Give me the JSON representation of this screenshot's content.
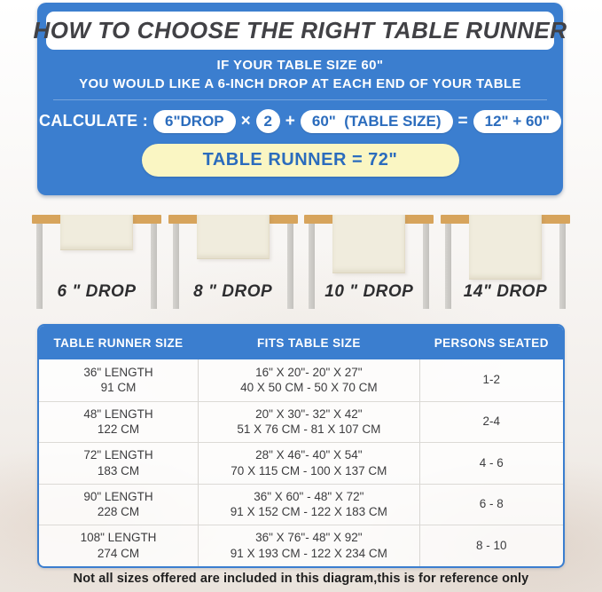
{
  "header": {
    "title": "HOW TO CHOOSE THE RIGHT TABLE RUNNER",
    "subtitle_line1": "IF YOUR TABLE SIZE 60\"",
    "subtitle_line2": "YOU WOULD LIKE A 6-INCH DROP AT EACH END OF YOUR TABLE",
    "calculate_label": "CALCULATE :",
    "formula": {
      "drop_pill": "6\"DROP",
      "times": "×",
      "multiplier": "2",
      "plus": "+",
      "table_size_pill": "60\"  (TABLE SIZE)",
      "equals": "=",
      "sum_pill": "12\" + 60\""
    },
    "result_banner": "TABLE RUNNER = 72\""
  },
  "drops": [
    {
      "label": "6 \" DROP"
    },
    {
      "label": "8 \" DROP"
    },
    {
      "label": "10 \" DROP"
    },
    {
      "label": "14\" DROP"
    }
  ],
  "size_table": {
    "columns": [
      "TABLE RUNNER SIZE",
      "FITS TABLE SIZE",
      "PERSONS SEATED"
    ],
    "rows": [
      {
        "runner_in": "36\" LENGTH",
        "runner_cm": "91 CM",
        "fits_in": "16\" X 20\"- 20\" X 27\"",
        "fits_cm": "40 X 50 CM - 50 X 70 CM",
        "persons": "1-2"
      },
      {
        "runner_in": "48\" LENGTH",
        "runner_cm": "122 CM",
        "fits_in": "20\" X 30\"- 32\" X 42\"",
        "fits_cm": "51 X 76 CM - 81 X 107 CM",
        "persons": "2-4"
      },
      {
        "runner_in": "72\" LENGTH",
        "runner_cm": "183 CM",
        "fits_in": "28\" X 46\"- 40\" X 54\"",
        "fits_cm": "70 X 115 CM - 100 X 137 CM",
        "persons": "4 - 6"
      },
      {
        "runner_in": "90\" LENGTH",
        "runner_cm": "228 CM",
        "fits_in": "36\" X 60\" - 48\" X 72\"",
        "fits_cm": "91 X 152 CM - 122 X 183 CM",
        "persons": "6 - 8"
      },
      {
        "runner_in": "108\" LENGTH",
        "runner_cm": "274 CM",
        "fits_in": "36\" X 76\"- 48\" X 92\"",
        "fits_cm": "91 X 193 CM - 122 X 234 CM",
        "persons": "8 - 10"
      }
    ]
  },
  "footer": {
    "note": "Not all sizes offered are included in this diagram,this is for reference only"
  },
  "colors": {
    "primary_blue": "#3b7ecf",
    "pill_text_blue": "#2b6cbd",
    "result_yellow": "#faf6c3",
    "tabletop_tan": "#d7a45c",
    "leg_gray": "#c9c7c3",
    "runner_cream": "#f0ecdd"
  }
}
